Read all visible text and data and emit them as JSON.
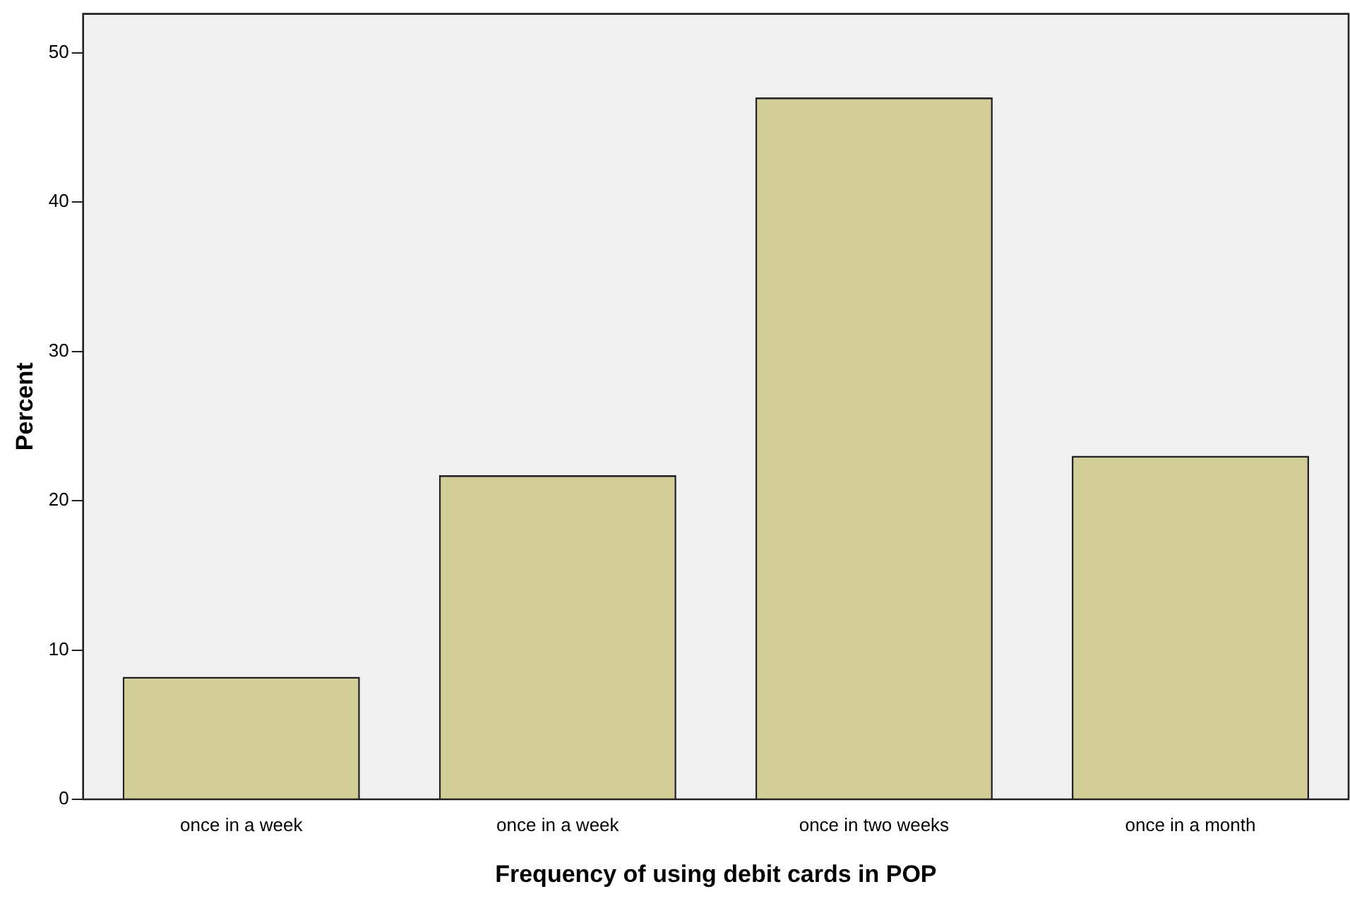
{
  "chart_data": {
    "type": "bar",
    "xlabel": "Frequency of using debit cards in POP",
    "ylabel": "Percent",
    "categories": [
      "once in a week",
      "once in a week",
      "once in two weeks",
      "once in a month"
    ],
    "values": [
      8.2,
      21.7,
      47.0,
      23.0
    ],
    "color": "#d3ce98",
    "ylim": [
      0,
      52.6
    ],
    "yticks": [
      0,
      10,
      20,
      30,
      40,
      50
    ],
    "grid": false,
    "legend": false
  }
}
